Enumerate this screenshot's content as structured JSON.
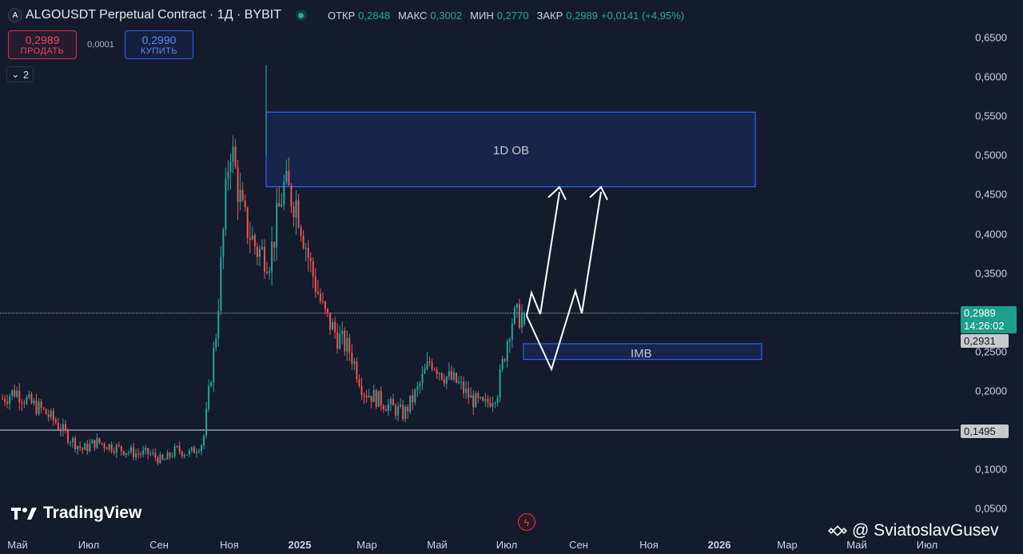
{
  "header": {
    "symbol_icon": "A",
    "title": "ALGOUSDT Perpetual Contract · 1Д · BYBIT",
    "ohlc": [
      {
        "k": "ОТКР",
        "v": "0,2848"
      },
      {
        "k": "МАКС",
        "v": "0,3002"
      },
      {
        "k": "МИН",
        "v": "0,2770"
      },
      {
        "k": "ЗАКР",
        "v": "0,2989"
      },
      {
        "k": "",
        "v": "+0,0141 (+4,95%)"
      }
    ]
  },
  "trade": {
    "sell_price": "0,2989",
    "sell_label": "ПРОДАТЬ",
    "spread": "0,0001",
    "buy_price": "0,2990",
    "buy_label": "КУПИТЬ"
  },
  "indicators_count": "2",
  "price_labels": {
    "last": "0,2989",
    "countdown": "14:26:02",
    "prev": "0,2931",
    "low": "0,1495"
  },
  "annotations": {
    "ob": "1D OB",
    "imb": "IMB"
  },
  "footer": {
    "logo": "TradingView",
    "watermark": "@ SviatoslavGusev"
  },
  "colors": {
    "up": "#26a69a",
    "down": "#ef5350",
    "zone": "#2962ff"
  },
  "chart_data": {
    "type": "candlestick",
    "yticks": [
      "0,6500",
      "0,6000",
      "0,5500",
      "0,5000",
      "0,4500",
      "0,4000",
      "0,3500",
      "0,3000",
      "0,2500",
      "0,2000",
      "0,1500",
      "0,1000",
      "0,0500"
    ],
    "xticks": [
      "Май",
      "Июл",
      "Сен",
      "Ноя",
      "2025",
      "Мар",
      "Май",
      "Июл",
      "Сен",
      "Ноя",
      "2026",
      "Мар",
      "Май",
      "Июл"
    ],
    "close_path": [
      0.19,
      0.2,
      0.185,
      0.175,
      0.16,
      0.14,
      0.125,
      0.135,
      0.13,
      0.125,
      0.12,
      0.12,
      0.11,
      0.125,
      0.12,
      0.135,
      0.28,
      0.52,
      0.42,
      0.38,
      0.37,
      0.46,
      0.44,
      0.36,
      0.3,
      0.27,
      0.25,
      0.2,
      0.19,
      0.18,
      0.17,
      0.2,
      0.24,
      0.22,
      0.21,
      0.19,
      0.18,
      0.2,
      0.29,
      0.2989
    ],
    "zones": [
      {
        "name": "1D OB",
        "low": 0.46,
        "high": 0.555
      },
      {
        "name": "IMB",
        "low": 0.24,
        "high": 0.26
      }
    ],
    "levels": [
      0.2989,
      0.1495
    ]
  }
}
